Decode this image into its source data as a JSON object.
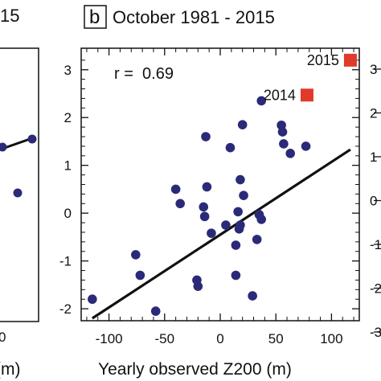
{
  "left_panel_fragment": {
    "title_fragment": "15",
    "xlabel_fragment": "(m)",
    "tick_fragment": "0"
  },
  "right_panel_fragment": {
    "tick_labels": [
      "3",
      "2",
      "1",
      "0",
      "-1",
      "-2",
      "-3"
    ]
  },
  "chart_data": {
    "type": "scatter",
    "panel_letter": "b",
    "title": "October 1981 - 2015",
    "xlabel": "Yearly observed Z200 (m)",
    "ylabel": "",
    "xlim": [
      -125,
      125
    ],
    "ylim": [
      -2.25,
      3.45
    ],
    "x_ticks": [
      -100,
      -50,
      0,
      50,
      100
    ],
    "y_ticks": [
      -2,
      -1,
      0,
      1,
      2,
      3
    ],
    "annotation": "r =  0.69",
    "regression_line": {
      "x": [
        -115,
        117
      ],
      "y": [
        -2.2,
        1.33
      ]
    },
    "point_color": "#2b2a78",
    "highlight_color": "#e03a2a",
    "points": [
      {
        "x": -115,
        "y": -1.8
      },
      {
        "x": -76,
        "y": -0.87
      },
      {
        "x": -72,
        "y": -1.3
      },
      {
        "x": -58,
        "y": -2.05
      },
      {
        "x": -40,
        "y": 0.5
      },
      {
        "x": -36,
        "y": 0.2
      },
      {
        "x": -21,
        "y": -1.4
      },
      {
        "x": -20,
        "y": -1.53
      },
      {
        "x": -15,
        "y": 0.13
      },
      {
        "x": -14,
        "y": -0.07
      },
      {
        "x": -13,
        "y": 1.6
      },
      {
        "x": -12,
        "y": 0.55
      },
      {
        "x": -8,
        "y": -0.42
      },
      {
        "x": 5,
        "y": -0.25
      },
      {
        "x": 9,
        "y": 1.37
      },
      {
        "x": 14,
        "y": -0.67
      },
      {
        "x": 14,
        "y": -1.3
      },
      {
        "x": 16,
        "y": 0.03
      },
      {
        "x": 17,
        "y": -0.33
      },
      {
        "x": 18,
        "y": 0.7
      },
      {
        "x": 18,
        "y": -0.25
      },
      {
        "x": 20,
        "y": 1.85
      },
      {
        "x": 21,
        "y": 0.37
      },
      {
        "x": 29,
        "y": -1.73
      },
      {
        "x": 33,
        "y": -0.55
      },
      {
        "x": 35,
        "y": -0.03
      },
      {
        "x": 37,
        "y": -0.13
      },
      {
        "x": 37,
        "y": 2.35
      },
      {
        "x": 55,
        "y": 1.84
      },
      {
        "x": 56,
        "y": 1.7
      },
      {
        "x": 57,
        "y": 1.45
      },
      {
        "x": 63,
        "y": 1.25
      },
      {
        "x": 77,
        "y": 1.4
      }
    ],
    "highlighted": [
      {
        "label": "2015",
        "x": 117,
        "y": 3.2
      },
      {
        "label": "2014",
        "x": 78,
        "y": 2.47
      }
    ]
  }
}
